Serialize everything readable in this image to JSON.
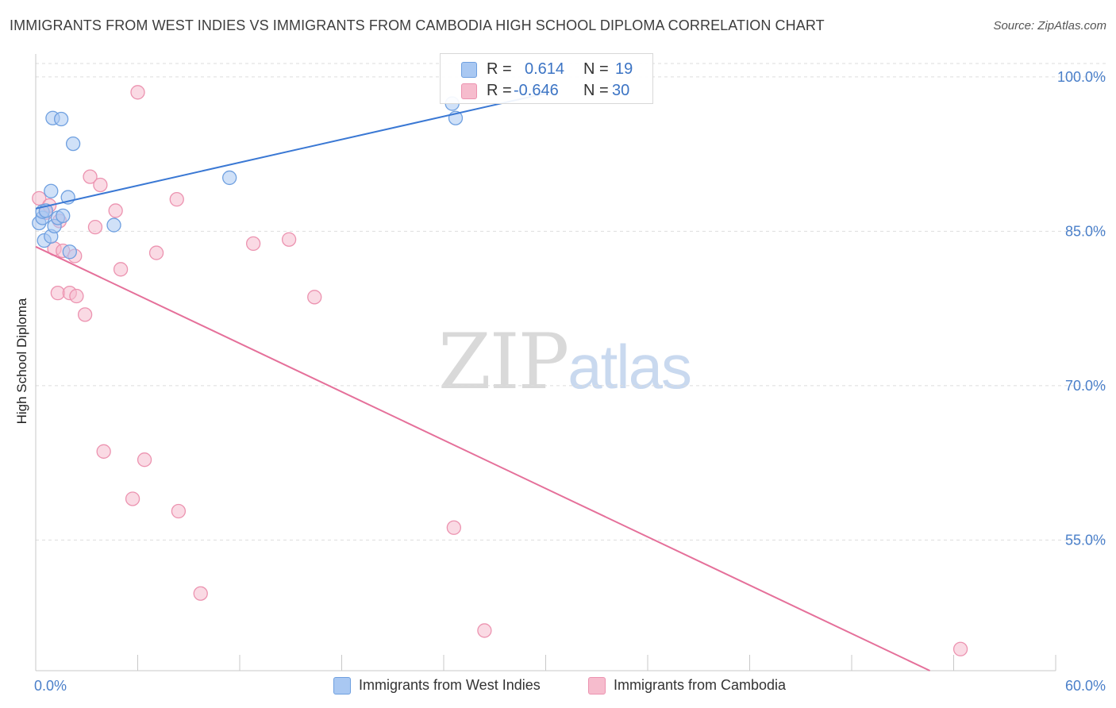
{
  "title": "IMMIGRANTS FROM WEST INDIES VS IMMIGRANTS FROM CAMBODIA HIGH SCHOOL DIPLOMA CORRELATION CHART",
  "source": "Source: ZipAtlas.com",
  "watermark": {
    "zip": "ZIP",
    "atlas": "atlas"
  },
  "colors": {
    "blue_fill": "#a9c8f2",
    "blue_stroke": "#6fa0e0",
    "blue_line": "#3a78d4",
    "pink_fill": "#f6bccd",
    "pink_stroke": "#ec93b0",
    "pink_line": "#e5709a",
    "grid": "#dddddd",
    "tick_text": "#4a7fc9"
  },
  "stats": [
    {
      "r_label": "R =",
      "r_value": "0.614",
      "n_label": "N =",
      "n_value": "19",
      "color": "#a9c8f2",
      "border": "#6fa0e0"
    },
    {
      "r_label": "R =",
      "r_value": "-0.646",
      "n_label": "N =",
      "n_value": "30",
      "color": "#f6bccd",
      "border": "#ec93b0"
    }
  ],
  "legend": [
    {
      "label": "Immigrants from West Indies",
      "color": "#a9c8f2",
      "border": "#6fa0e0"
    },
    {
      "label": "Immigrants from Cambodia",
      "color": "#f6bccd",
      "border": "#ec93b0"
    }
  ],
  "chart_data": {
    "type": "scatter",
    "title": "IMMIGRANTS FROM WEST INDIES VS IMMIGRANTS FROM CAMBODIA HIGH SCHOOL DIPLOMA CORRELATION CHART",
    "xlabel": "",
    "ylabel": "High School Diploma",
    "xlim": [
      0,
      60
    ],
    "ylim": [
      42.3,
      101.3
    ],
    "x_tick_labels": [
      "0.0%",
      "60.0%"
    ],
    "y_ticks": [
      100,
      85,
      70,
      55
    ],
    "y_tick_labels": [
      "100.0%",
      "85.0%",
      "70.0%",
      "55.0%"
    ],
    "grid": true,
    "series": [
      {
        "name": "Immigrants from West Indies",
        "points": [
          [
            0.2,
            85.8
          ],
          [
            0.4,
            86.3
          ],
          [
            0.4,
            86.9
          ],
          [
            0.5,
            84.1
          ],
          [
            0.6,
            87.0
          ],
          [
            0.9,
            84.5
          ],
          [
            0.9,
            88.9
          ],
          [
            1.0,
            96.0
          ],
          [
            1.1,
            85.5
          ],
          [
            1.3,
            86.3
          ],
          [
            1.5,
            95.9
          ],
          [
            1.6,
            86.5
          ],
          [
            1.9,
            88.3
          ],
          [
            2.0,
            83.0
          ],
          [
            2.2,
            93.5
          ],
          [
            4.6,
            85.6
          ],
          [
            11.4,
            90.2
          ],
          [
            24.5,
            97.4
          ],
          [
            24.7,
            96.0
          ]
        ],
        "trend": {
          "x": [
            0,
            30
          ],
          "y": [
            87.2,
            98.4
          ]
        }
      },
      {
        "name": "Immigrants from Cambodia",
        "points": [
          [
            0.2,
            88.2
          ],
          [
            0.6,
            86.8
          ],
          [
            0.8,
            87.5
          ],
          [
            1.1,
            83.3
          ],
          [
            1.3,
            79.0
          ],
          [
            1.4,
            86.0
          ],
          [
            1.6,
            83.1
          ],
          [
            2.0,
            79.0
          ],
          [
            2.3,
            82.6
          ],
          [
            2.4,
            78.7
          ],
          [
            2.9,
            76.9
          ],
          [
            3.2,
            90.3
          ],
          [
            3.5,
            85.4
          ],
          [
            3.8,
            89.5
          ],
          [
            4.0,
            63.6
          ],
          [
            4.7,
            87.0
          ],
          [
            5.0,
            81.3
          ],
          [
            5.7,
            59.0
          ],
          [
            6.0,
            98.5
          ],
          [
            6.4,
            62.8
          ],
          [
            7.1,
            82.9
          ],
          [
            8.3,
            88.1
          ],
          [
            8.4,
            57.8
          ],
          [
            9.7,
            49.8
          ],
          [
            12.8,
            83.8
          ],
          [
            14.9,
            84.2
          ],
          [
            16.4,
            78.6
          ],
          [
            24.6,
            56.2
          ],
          [
            26.4,
            46.2
          ],
          [
            54.4,
            44.4
          ]
        ],
        "trend": {
          "x": [
            0,
            52.6
          ],
          "y": [
            83.5,
            42.3
          ]
        }
      }
    ]
  }
}
